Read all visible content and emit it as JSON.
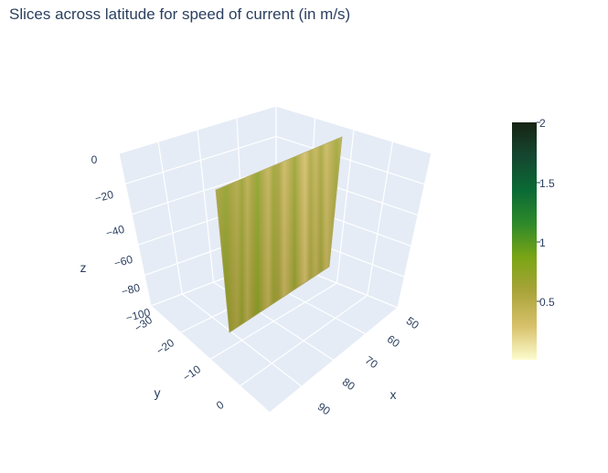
{
  "chart_data": {
    "type": "surface",
    "title": "Slices across latitude for speed of current (in m/s)",
    "axes": {
      "x": {
        "title": "x",
        "ticks": [
          "50",
          "60",
          "70",
          "80",
          "90"
        ]
      },
      "y": {
        "title": "y",
        "ticks": [
          "−30",
          "−20",
          "−10",
          "0"
        ]
      },
      "z": {
        "title": "z",
        "ticks": [
          "0",
          "−20",
          "−40",
          "−60",
          "−80",
          "−100"
        ]
      }
    },
    "colorbar": {
      "ticks": [
        "2",
        "1.5",
        "1",
        "0.5"
      ],
      "range": [
        0,
        2
      ],
      "colorscale": [
        "#fdfcce",
        "#d7c16a",
        "#aaa43a",
        "#7ba515",
        "#2f8a2a",
        "#0a6a35",
        "#154730",
        "#172313"
      ]
    },
    "slice": {
      "stripe_values": [
        0.55,
        0.62,
        0.7,
        0.58,
        0.5,
        0.66,
        0.44,
        0.6,
        0.74,
        0.52,
        0.4,
        0.63,
        0.57,
        0.35,
        0.48,
        0.68,
        0.45,
        0.3,
        0.55,
        0.42,
        0.6,
        0.38,
        0.5,
        0.65,
        0.47
      ]
    }
  }
}
